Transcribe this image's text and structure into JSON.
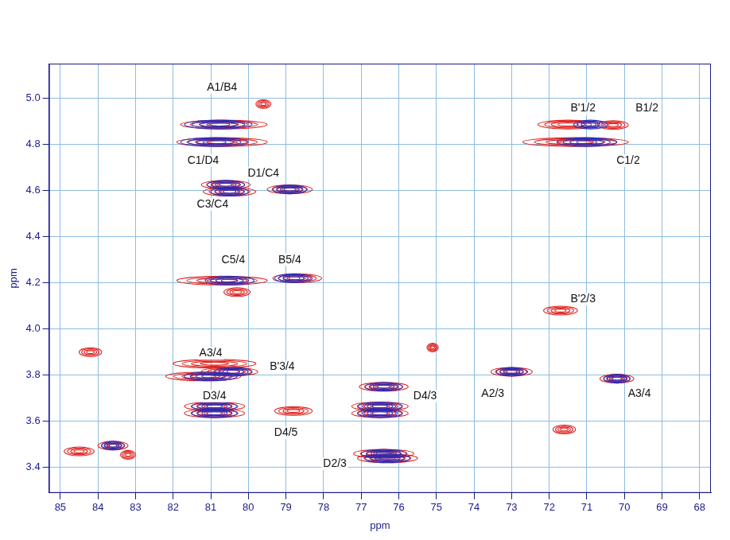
{
  "chart_data": {
    "type": "scatter",
    "marker": "ellipse",
    "x_label": "ppm",
    "y_label": "ppm",
    "xlim": [
      85.3,
      67.7
    ],
    "ylim": [
      3.29,
      5.15
    ],
    "xticks": [
      85,
      84,
      83,
      82,
      81,
      80,
      79,
      78,
      77,
      76,
      75,
      74,
      73,
      72,
      71,
      70,
      69,
      68
    ],
    "yticks": [
      3.4,
      3.6,
      3.8,
      {
        "value": 4,
        "label": "4.0"
      },
      4.2,
      4.4,
      4.6,
      4.8,
      {
        "value": 5,
        "label": "5.0"
      }
    ],
    "grid": true,
    "series": [
      {
        "color": "#e0201c",
        "values": [
          {
            "x": 79.6,
            "y": 4.975,
            "width": 0.4
          },
          {
            "x": 80.65,
            "y": 4.886,
            "width": 2.3
          },
          {
            "x": 80.7,
            "y": 4.81,
            "width": 2.4
          },
          {
            "x": 71.5,
            "y": 4.886,
            "width": 1.6
          },
          {
            "x": 70.3,
            "y": 4.884,
            "width": 0.8
          },
          {
            "x": 71.3,
            "y": 4.81,
            "width": 2.8
          },
          {
            "x": 80.6,
            "y": 4.625,
            "width": 1.3
          },
          {
            "x": 80.5,
            "y": 4.595,
            "width": 1.4
          },
          {
            "x": 78.9,
            "y": 4.605,
            "width": 1.2
          },
          {
            "x": 80.7,
            "y": 4.21,
            "width": 2.4
          },
          {
            "x": 78.7,
            "y": 4.22,
            "width": 1.3
          },
          {
            "x": 80.3,
            "y": 4.16,
            "width": 0.7
          },
          {
            "x": 71.7,
            "y": 4.08,
            "width": 0.9
          },
          {
            "x": 80.9,
            "y": 3.85,
            "width": 2.2
          },
          {
            "x": 81.2,
            "y": 3.795,
            "width": 2.0
          },
          {
            "x": 80.5,
            "y": 3.815,
            "width": 1.5
          },
          {
            "x": 80.9,
            "y": 3.665,
            "width": 1.6
          },
          {
            "x": 80.9,
            "y": 3.635,
            "width": 1.6
          },
          {
            "x": 78.8,
            "y": 3.645,
            "width": 1.0
          },
          {
            "x": 76.4,
            "y": 3.75,
            "width": 1.3
          },
          {
            "x": 76.5,
            "y": 3.665,
            "width": 1.5
          },
          {
            "x": 76.5,
            "y": 3.635,
            "width": 1.5
          },
          {
            "x": 76.4,
            "y": 3.46,
            "width": 1.6
          },
          {
            "x": 76.3,
            "y": 3.44,
            "width": 1.6
          },
          {
            "x": 73.0,
            "y": 3.815,
            "width": 1.1
          },
          {
            "x": 70.2,
            "y": 3.785,
            "width": 0.9
          },
          {
            "x": 71.6,
            "y": 3.565,
            "width": 0.6
          },
          {
            "x": 84.2,
            "y": 3.9,
            "width": 0.6
          },
          {
            "x": 75.1,
            "y": 3.92,
            "width": 0.3
          },
          {
            "x": 83.6,
            "y": 3.495,
            "width": 0.8
          },
          {
            "x": 84.5,
            "y": 3.47,
            "width": 0.8
          },
          {
            "x": 83.2,
            "y": 3.455,
            "width": 0.4
          }
        ]
      },
      {
        "color": "#2b2bb8",
        "values": [
          {
            "x": 80.8,
            "y": 4.886,
            "width": 1.8
          },
          {
            "x": 80.9,
            "y": 4.81,
            "width": 1.8
          },
          {
            "x": 70.9,
            "y": 4.886,
            "width": 0.9
          },
          {
            "x": 71.0,
            "y": 4.81,
            "width": 1.6
          },
          {
            "x": 80.6,
            "y": 4.625,
            "width": 1.0
          },
          {
            "x": 80.5,
            "y": 4.595,
            "width": 1.0
          },
          {
            "x": 78.9,
            "y": 4.605,
            "width": 0.9
          },
          {
            "x": 80.5,
            "y": 4.21,
            "width": 1.3
          },
          {
            "x": 78.8,
            "y": 4.22,
            "width": 1.0
          },
          {
            "x": 81.0,
            "y": 3.795,
            "width": 1.4
          },
          {
            "x": 80.4,
            "y": 3.815,
            "width": 1.0
          },
          {
            "x": 80.9,
            "y": 3.665,
            "width": 1.2
          },
          {
            "x": 80.9,
            "y": 3.635,
            "width": 1.2
          },
          {
            "x": 76.4,
            "y": 3.75,
            "width": 1.0
          },
          {
            "x": 76.5,
            "y": 3.665,
            "width": 1.2
          },
          {
            "x": 76.5,
            "y": 3.635,
            "width": 1.2
          },
          {
            "x": 76.4,
            "y": 3.46,
            "width": 1.2
          },
          {
            "x": 76.3,
            "y": 3.44,
            "width": 1.2
          },
          {
            "x": 73.0,
            "y": 3.815,
            "width": 0.8
          },
          {
            "x": 70.2,
            "y": 3.785,
            "width": 0.7
          },
          {
            "x": 83.6,
            "y": 3.495,
            "width": 0.6
          }
        ]
      }
    ],
    "annotations": [
      {
        "text": "A1/B4",
        "x": 80.7,
        "y": 5.047
      },
      {
        "text": "C1/D4",
        "x": 81.2,
        "y": 4.73
      },
      {
        "text": "D1/C4",
        "x": 79.6,
        "y": 4.675
      },
      {
        "text": "C3/C4",
        "x": 80.95,
        "y": 4.54
      },
      {
        "text": "C5/4",
        "x": 80.4,
        "y": 4.3
      },
      {
        "text": "B5/4",
        "x": 78.9,
        "y": 4.3
      },
      {
        "text": "B'1/2",
        "x": 71.1,
        "y": 4.955
      },
      {
        "text": "B1/2",
        "x": 69.4,
        "y": 4.955
      },
      {
        "text": "C1/2",
        "x": 69.9,
        "y": 4.73
      },
      {
        "text": "B'2/3",
        "x": 71.1,
        "y": 4.13
      },
      {
        "text": "A3/4",
        "x": 81.0,
        "y": 3.895
      },
      {
        "text": "B'3/4",
        "x": 79.1,
        "y": 3.835
      },
      {
        "text": "D3/4",
        "x": 80.9,
        "y": 3.71
      },
      {
        "text": "D4/5",
        "x": 79.0,
        "y": 3.55
      },
      {
        "text": "D4/3",
        "x": 75.3,
        "y": 3.71
      },
      {
        "text": "A2/3",
        "x": 73.5,
        "y": 3.72
      },
      {
        "text": "A3/4",
        "x": 69.6,
        "y": 3.72
      },
      {
        "text": "D2/3",
        "x": 77.7,
        "y": 3.415
      }
    ]
  }
}
